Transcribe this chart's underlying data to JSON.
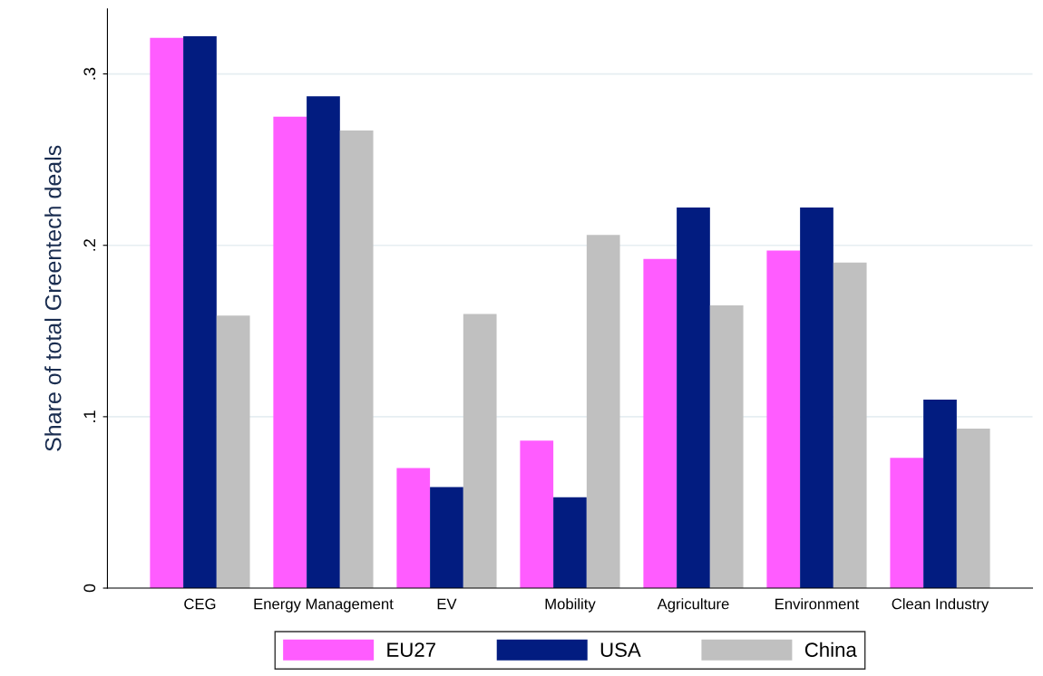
{
  "chart_data": {
    "type": "bar",
    "ylabel": "Share of total Greentech deals",
    "categories": [
      "CEG",
      "Energy Management",
      "EV",
      "Mobility",
      "Agriculture",
      "Environment",
      "Clean Industry"
    ],
    "series": [
      {
        "name": "EU27",
        "color": "#ff5cff",
        "values": [
          0.321,
          0.275,
          0.07,
          0.086,
          0.192,
          0.197,
          0.076
        ]
      },
      {
        "name": "USA",
        "color": "#021c80",
        "values": [
          0.322,
          0.287,
          0.059,
          0.053,
          0.222,
          0.222,
          0.11
        ]
      },
      {
        "name": "China",
        "color": "#c0c0c0",
        "values": [
          0.159,
          0.267,
          0.16,
          0.206,
          0.165,
          0.19,
          0.093
        ]
      }
    ],
    "ylim": [
      0,
      0.338
    ],
    "yticks": [
      0,
      {
        "value": 0.1,
        "label": ".1"
      },
      {
        "value": 0.2,
        "label": ".2"
      },
      {
        "value": 0.3,
        "label": ".3"
      }
    ],
    "grid": "y",
    "legend": "bottom"
  }
}
